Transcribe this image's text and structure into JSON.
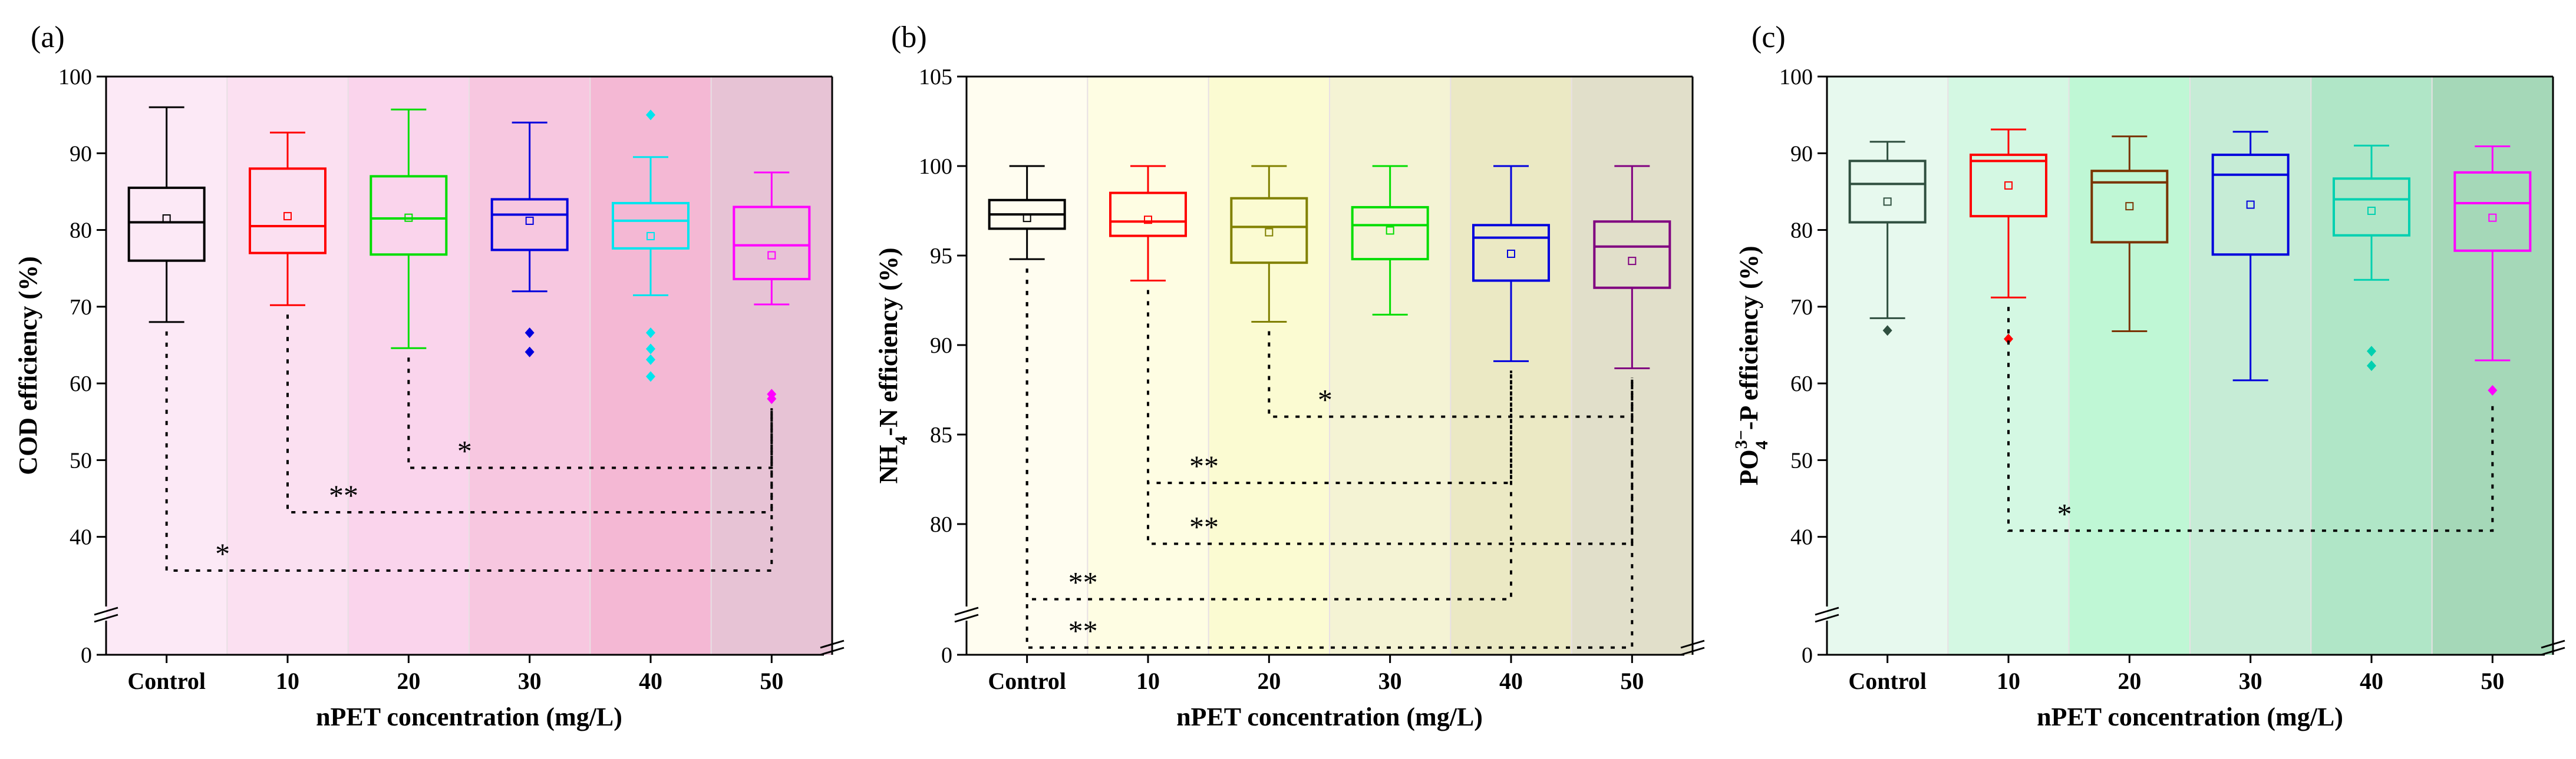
{
  "chart_data": [
    {
      "panel": "(a)",
      "type": "box",
      "ylabel": "COD efficiency (%)",
      "xlabel": "nPET concentration (mg/L)",
      "categories": [
        "Control",
        "10",
        "20",
        "30",
        "40",
        "50"
      ],
      "upper_ylim": [
        30,
        100
      ],
      "upper_yticks": [
        "40",
        "50",
        "60",
        "70",
        "80",
        "90",
        "100"
      ],
      "lower_ytick": "0",
      "band_colors": [
        "#fce9f6",
        "#fbe0f1",
        "#fad4ec",
        "#f7c7e0",
        "#f4b8d4",
        "#e7c3d5"
      ],
      "series": [
        {
          "category": "Control",
          "color": "#000000",
          "whisker_low": 68.0,
          "q1": 76.0,
          "median": 81.0,
          "q3": 85.5,
          "whisker_high": 96.0,
          "mean": 81.5,
          "outliers": []
        },
        {
          "category": "10",
          "color": "#ff0000",
          "whisker_low": 70.2,
          "q1": 77.0,
          "median": 80.5,
          "q3": 88.0,
          "whisker_high": 92.7,
          "mean": 81.8,
          "outliers": []
        },
        {
          "category": "20",
          "color": "#00dd00",
          "whisker_low": 64.6,
          "q1": 76.8,
          "median": 81.5,
          "q3": 87.0,
          "whisker_high": 95.7,
          "mean": 81.6,
          "outliers": []
        },
        {
          "category": "30",
          "color": "#0000dd",
          "whisker_low": 72.0,
          "q1": 77.4,
          "median": 82.0,
          "q3": 84.0,
          "whisker_high": 94.0,
          "mean": 81.2,
          "outliers": [
            66.6,
            64.1
          ]
        },
        {
          "category": "40",
          "color": "#00e5ee",
          "whisker_low": 71.5,
          "q1": 77.6,
          "median": 81.2,
          "q3": 83.5,
          "whisker_high": 89.5,
          "mean": 79.2,
          "outliers": [
            95.0,
            66.6,
            64.5,
            63.1,
            60.9
          ]
        },
        {
          "category": "50",
          "color": "#ff00ff",
          "whisker_low": 70.3,
          "q1": 73.6,
          "median": 78.0,
          "q3": 83.0,
          "whisker_high": 87.5,
          "mean": 76.7,
          "outliers": [
            58.6,
            58.0
          ]
        }
      ],
      "significance": [
        {
          "from": "20",
          "to": "50",
          "level": 49.0,
          "label": "*"
        },
        {
          "from": "10",
          "to": "50",
          "level": 43.2,
          "label": "**"
        },
        {
          "from": "Control",
          "to": "50",
          "level": 35.6,
          "label": "*"
        }
      ]
    },
    {
      "panel": "(b)",
      "type": "box",
      "ylabel": "NH4-N efficiency (%)",
      "xlabel": "nPET concentration (mg/L)",
      "categories": [
        "Control",
        "10",
        "20",
        "30",
        "40",
        "50"
      ],
      "upper_ylim": [
        75,
        105
      ],
      "upper_yticks": [
        "80",
        "85",
        "90",
        "95",
        "100",
        "105"
      ],
      "lower_ytick": "0",
      "band_colors": [
        "#fffdf0",
        "#fefde3",
        "#fbfbd2",
        "#f4f3d4",
        "#ebe9c4",
        "#e1dfca"
      ],
      "series": [
        {
          "category": "Control",
          "color": "#000000",
          "whisker_low": 94.8,
          "q1": 96.5,
          "median": 97.3,
          "q3": 98.1,
          "whisker_high": 100.0,
          "mean": 97.1,
          "outliers": []
        },
        {
          "category": "10",
          "color": "#ff0000",
          "whisker_low": 93.6,
          "q1": 96.1,
          "median": 96.9,
          "q3": 98.5,
          "whisker_high": 100.0,
          "mean": 97.0,
          "outliers": []
        },
        {
          "category": "20",
          "color": "#808000",
          "whisker_low": 91.3,
          "q1": 94.6,
          "median": 96.6,
          "q3": 98.2,
          "whisker_high": 100.0,
          "mean": 96.3,
          "outliers": []
        },
        {
          "category": "30",
          "color": "#00dd00",
          "whisker_low": 91.7,
          "q1": 94.8,
          "median": 96.7,
          "q3": 97.7,
          "whisker_high": 100.0,
          "mean": 96.4,
          "outliers": []
        },
        {
          "category": "40",
          "color": "#0000dd",
          "whisker_low": 89.1,
          "q1": 93.6,
          "median": 96.0,
          "q3": 96.7,
          "whisker_high": 100.0,
          "mean": 95.1,
          "outliers": []
        },
        {
          "category": "50",
          "color": "#800080",
          "whisker_low": 88.7,
          "q1": 93.2,
          "median": 95.5,
          "q3": 96.9,
          "whisker_high": 100.0,
          "mean": 94.7,
          "outliers": []
        }
      ],
      "significance": [
        {
          "from": "20",
          "to": "50",
          "level": 86.0,
          "label": "*"
        },
        {
          "from": "10",
          "to": "40",
          "level": 82.3,
          "label": "**"
        },
        {
          "from": "10",
          "to": "50",
          "level": 78.9,
          "label": "**"
        },
        {
          "from": "Control",
          "to": "40",
          "level": 75.8,
          "label": "**"
        },
        {
          "from": "Control",
          "to": "50",
          "level": 73.1,
          "label": "**"
        }
      ]
    },
    {
      "panel": "(c)",
      "type": "box",
      "ylabel": "PO4-P efficiency (%)",
      "xlabel": "nPET concentration (mg/L)",
      "categories": [
        "Control",
        "10",
        "20",
        "30",
        "40",
        "50"
      ],
      "upper_ylim": [
        30,
        100
      ],
      "upper_yticks": [
        "40",
        "50",
        "60",
        "70",
        "80",
        "90",
        "100"
      ],
      "lower_ytick": "0",
      "band_colors": [
        "#e7f9ee",
        "#d4f8e3",
        "#bff7d5",
        "#c6ecd6",
        "#b0e6c7",
        "#a5d8b8"
      ],
      "series": [
        {
          "category": "Control",
          "color": "#2f4f3f",
          "whisker_low": 68.5,
          "q1": 81.0,
          "median": 86.0,
          "q3": 89.0,
          "whisker_high": 91.5,
          "mean": 83.7,
          "outliers": [
            66.9
          ]
        },
        {
          "category": "10",
          "color": "#ff0000",
          "whisker_low": 71.2,
          "q1": 81.8,
          "median": 89.0,
          "q3": 89.8,
          "whisker_high": 93.1,
          "mean": 85.8,
          "outliers": [
            65.8
          ]
        },
        {
          "category": "20",
          "color": "#7a3300",
          "whisker_low": 66.8,
          "q1": 78.4,
          "median": 86.2,
          "q3": 87.7,
          "whisker_high": 92.2,
          "mean": 83.1,
          "outliers": []
        },
        {
          "category": "30",
          "color": "#0000dd",
          "whisker_low": 60.4,
          "q1": 76.8,
          "median": 87.2,
          "q3": 89.8,
          "whisker_high": 92.8,
          "mean": 83.3,
          "outliers": []
        },
        {
          "category": "40",
          "color": "#00d0b0",
          "whisker_low": 73.5,
          "q1": 79.3,
          "median": 84.0,
          "q3": 86.7,
          "whisker_high": 91.0,
          "mean": 82.5,
          "outliers": [
            64.2,
            62.3
          ]
        },
        {
          "category": "50",
          "color": "#ff00ff",
          "whisker_low": 63.0,
          "q1": 77.3,
          "median": 83.5,
          "q3": 87.5,
          "whisker_high": 90.9,
          "mean": 81.6,
          "outliers": [
            59.1
          ]
        }
      ],
      "significance": [
        {
          "from": "10",
          "to": "50",
          "level": 40.8,
          "label": "*"
        }
      ]
    }
  ]
}
